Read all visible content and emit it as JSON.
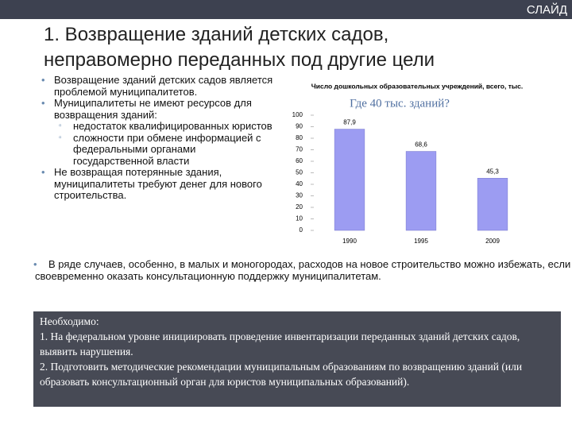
{
  "slide": {
    "header_label": "СЛАЙД",
    "title_lines": [
      "1. Возвращение зданий детских садов,",
      "неправомерно переданных под другие цели"
    ],
    "bullets": [
      {
        "text": "Возвращение зданий детских садов является проблемой муниципалитетов.",
        "sub": []
      },
      {
        "text": "Муниципалитеты не имеют ресурсов для возвращения зданий:",
        "sub": [
          "недостаток квалифицированных юристов",
          "сложности при обмене информацией с федеральными органами государственной власти"
        ]
      },
      {
        "text": "Не возвращая потерянные здания, муниципалитеты требуют денег для нового строительства.",
        "sub": []
      }
    ],
    "paragraph": "В ряде случаев, особенно, в малых и моногородах, расходов на новое строительство можно избежать, если своевременно оказать консультационную поддержку муниципалитетам.",
    "box_lines": [
      "Необходимо:",
      "1. На федеральном уровне инициировать проведение инвентаризации переданных зданий детских садов, выявить нарушения.",
      "2.  Подготовить методические рекомендации муниципальным образованиям по возвращению зданий (или образовать консультационный орган для юристов муниципальных образований)."
    ]
  },
  "chart_data": {
    "type": "bar",
    "title": "Число дошкольных образовательных учреждений, всего, тыс.",
    "annotation": "Где 40 тыс. зданий?",
    "categories": [
      "1990",
      "1995",
      "2009"
    ],
    "values": [
      87.9,
      68.6,
      45.3
    ],
    "value_labels": [
      "87,9",
      "68,6",
      "45,3"
    ],
    "color": "#9c9cf2",
    "ylim": [
      0,
      100
    ],
    "yticks": [
      0,
      10,
      20,
      30,
      40,
      50,
      60,
      70,
      80,
      90,
      100
    ],
    "grid": false
  }
}
